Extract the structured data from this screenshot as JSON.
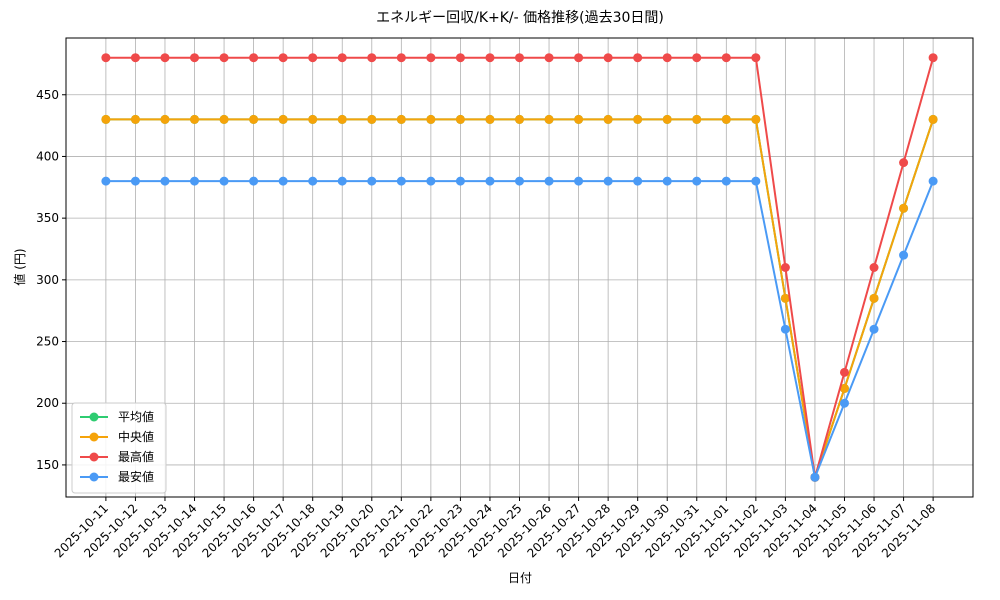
{
  "chart_data": {
    "type": "line",
    "title": "エネルギー回収/K+K/- 価格推移(過去30日間)",
    "x_label": "日付",
    "y_label": "値 (円)",
    "categories": [
      "2025-10-11",
      "2025-10-12",
      "2025-10-13",
      "2025-10-14",
      "2025-10-15",
      "2025-10-16",
      "2025-10-17",
      "2025-10-18",
      "2025-10-19",
      "2025-10-20",
      "2025-10-21",
      "2025-10-22",
      "2025-10-23",
      "2025-10-24",
      "2025-10-25",
      "2025-10-26",
      "2025-10-27",
      "2025-10-28",
      "2025-10-29",
      "2025-10-30",
      "2025-10-31",
      "2025-11-01",
      "2025-11-02",
      "2025-11-03",
      "2025-11-04",
      "2025-11-05",
      "2025-11-06",
      "2025-11-07",
      "2025-11-08"
    ],
    "series": [
      {
        "name": "平均値",
        "color": "#2ecc71",
        "values": [
          430,
          430,
          430,
          430,
          430,
          430,
          430,
          430,
          430,
          430,
          430,
          430,
          430,
          430,
          430,
          430,
          430,
          430,
          430,
          430,
          430,
          430,
          430,
          285,
          140,
          212,
          285,
          358,
          430
        ]
      },
      {
        "name": "中央値",
        "color": "#f5a30a",
        "values": [
          430,
          430,
          430,
          430,
          430,
          430,
          430,
          430,
          430,
          430,
          430,
          430,
          430,
          430,
          430,
          430,
          430,
          430,
          430,
          430,
          430,
          430,
          430,
          285,
          140,
          212,
          285,
          358,
          430
        ]
      },
      {
        "name": "最高値",
        "color": "#ef4a4a",
        "values": [
          480,
          480,
          480,
          480,
          480,
          480,
          480,
          480,
          480,
          480,
          480,
          480,
          480,
          480,
          480,
          480,
          480,
          480,
          480,
          480,
          480,
          480,
          480,
          310,
          140,
          225,
          310,
          395,
          480
        ]
      },
      {
        "name": "最安値",
        "color": "#4a9af5",
        "values": [
          380,
          380,
          380,
          380,
          380,
          380,
          380,
          380,
          380,
          380,
          380,
          380,
          380,
          380,
          380,
          380,
          380,
          380,
          380,
          380,
          380,
          380,
          380,
          260,
          140,
          200,
          260,
          320,
          380
        ]
      }
    ],
    "ylim": [
      124,
      496
    ],
    "yticks": [
      150,
      200,
      250,
      300,
      350,
      400,
      450
    ],
    "grid": true,
    "legend": "lower left"
  }
}
